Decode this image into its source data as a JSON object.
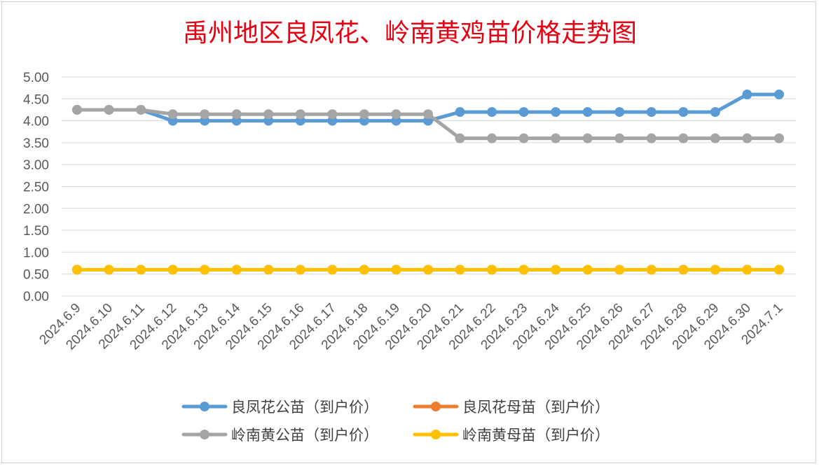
{
  "chart_data": {
    "type": "line",
    "title": "禹州地区良凤花、岭南黄鸡苗价格走势图",
    "xlabel": "",
    "ylabel": "",
    "ylim": [
      0,
      5
    ],
    "y_tick_labels": [
      "0.00",
      "0.50",
      "1.00",
      "1.50",
      "2.00",
      "2.50",
      "3.00",
      "3.50",
      "4.00",
      "4.50",
      "5.00"
    ],
    "grid": "horizontal",
    "legend_position": "bottom",
    "categories": [
      "2024.6.9",
      "2024.6.10",
      "2024.6.11",
      "2024.6.12",
      "2024.6.13",
      "2024.6.14",
      "2024.6.15",
      "2024.6.16",
      "2024.6.17",
      "2024.6.18",
      "2024.6.19",
      "2024.6.20",
      "2024.6.21",
      "2024.6.22",
      "2024.6.23",
      "2024.6.24",
      "2024.6.25",
      "2024.6.26",
      "2024.6.27",
      "2024.6.28",
      "2024.6.29",
      "2024.6.30",
      "2024.7.1"
    ],
    "series": [
      {
        "name": "良凤花公苗（到户价）",
        "color": "#5B9BD5",
        "values": [
          4.25,
          4.25,
          4.25,
          4.0,
          4.0,
          4.0,
          4.0,
          4.0,
          4.0,
          4.0,
          4.0,
          4.0,
          4.2,
          4.2,
          4.2,
          4.2,
          4.2,
          4.2,
          4.2,
          4.2,
          4.2,
          4.6,
          4.6
        ]
      },
      {
        "name": "良凤花母苗（到户价）",
        "color": "#ED7D31",
        "values": [
          0.6,
          0.6,
          0.6,
          0.6,
          0.6,
          0.6,
          0.6,
          0.6,
          0.6,
          0.6,
          0.6,
          0.6,
          0.6,
          0.6,
          0.6,
          0.6,
          0.6,
          0.6,
          0.6,
          0.6,
          0.6,
          0.6,
          0.6
        ]
      },
      {
        "name": "岭南黄公苗（到户价）",
        "color": "#A5A5A5",
        "values": [
          4.25,
          4.25,
          4.25,
          4.15,
          4.15,
          4.15,
          4.15,
          4.15,
          4.15,
          4.15,
          4.15,
          4.15,
          3.6,
          3.6,
          3.6,
          3.6,
          3.6,
          3.6,
          3.6,
          3.6,
          3.6,
          3.6,
          3.6
        ]
      },
      {
        "name": "岭南黄母苗（到户价）",
        "color": "#FFC000",
        "values": [
          0.6,
          0.6,
          0.6,
          0.6,
          0.6,
          0.6,
          0.6,
          0.6,
          0.6,
          0.6,
          0.6,
          0.6,
          0.6,
          0.6,
          0.6,
          0.6,
          0.6,
          0.6,
          0.6,
          0.6,
          0.6,
          0.6,
          0.6
        ]
      }
    ],
    "colors": {
      "title": "#E60012",
      "grid": "#D9D9D9",
      "tick": "#595959"
    }
  }
}
